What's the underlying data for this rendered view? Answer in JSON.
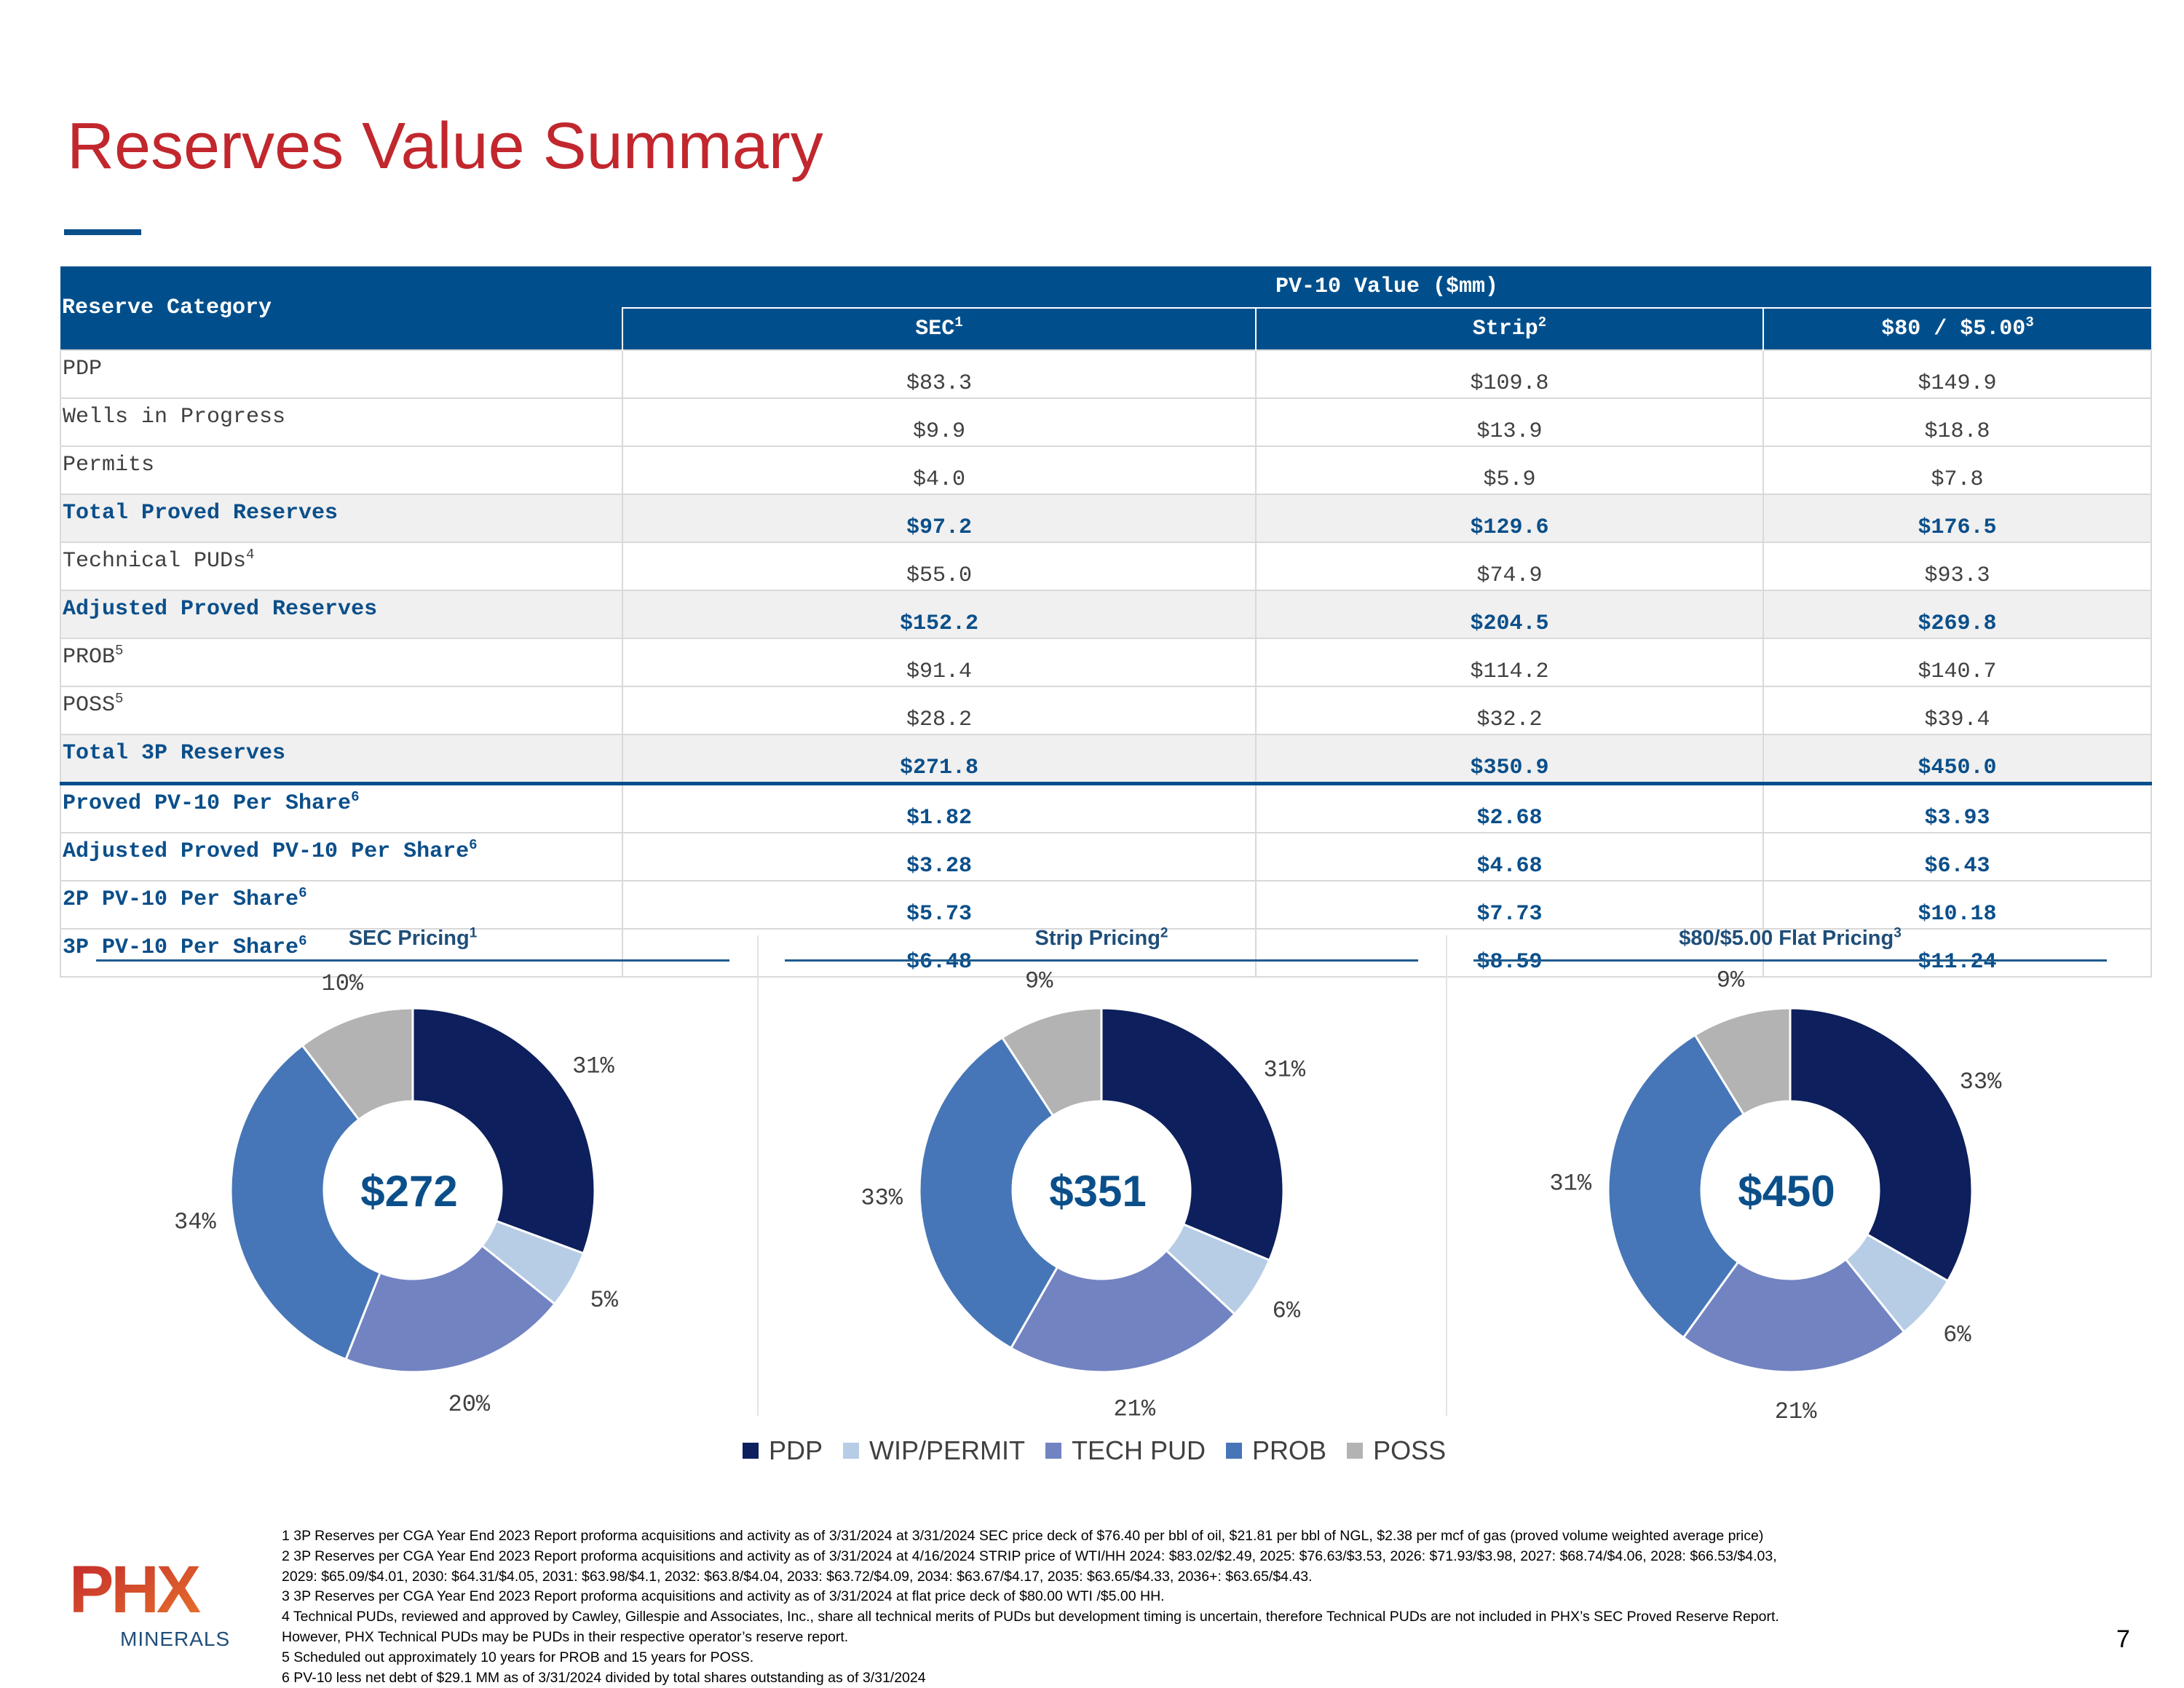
{
  "title": "Reserves Value Summary",
  "table": {
    "header_category": "Reserve Category",
    "header_group": "PV-10 Value ($mm)",
    "columns": [
      {
        "label": "SEC",
        "sup": "1"
      },
      {
        "label": "Strip",
        "sup": "2"
      },
      {
        "label": "$80 / $5.00",
        "sup": "3"
      }
    ],
    "rows": [
      {
        "label": "PDP",
        "sup": "",
        "values": [
          "$83.3",
          "$109.8",
          "$149.9"
        ]
      },
      {
        "label": "Wells in Progress",
        "sup": "",
        "values": [
          "$9.9",
          "$13.9",
          "$18.8"
        ]
      },
      {
        "label": "Permits",
        "sup": "",
        "values": [
          "$4.0",
          "$5.9",
          "$7.8"
        ]
      },
      {
        "label": "Total Proved Reserves",
        "sup": "",
        "values": [
          "$97.2",
          "$129.6",
          "$176.5"
        ]
      },
      {
        "label": "Technical PUDs",
        "sup": "4",
        "values": [
          "$55.0",
          "$74.9",
          "$93.3"
        ]
      },
      {
        "label": "Adjusted Proved Reserves",
        "sup": "",
        "values": [
          "$152.2",
          "$204.5",
          "$269.8"
        ]
      },
      {
        "label": "PROB",
        "sup": "5",
        "values": [
          "$91.4",
          "$114.2",
          "$140.7"
        ]
      },
      {
        "label": "POSS",
        "sup": "5",
        "values": [
          "$28.2",
          "$32.2",
          "$39.4"
        ]
      },
      {
        "label": "Total 3P Reserves",
        "sup": "",
        "values": [
          "$271.8",
          "$350.9",
          "$450.0"
        ]
      },
      {
        "label": "Proved PV-10 Per Share",
        "sup": "6",
        "values": [
          "$1.82",
          "$2.68",
          "$3.93"
        ]
      },
      {
        "label": "Adjusted Proved PV-10 Per Share",
        "sup": "6",
        "values": [
          "$3.28",
          "$4.68",
          "$6.43"
        ]
      },
      {
        "label": "2P PV-10 Per Share",
        "sup": "6",
        "values": [
          "$5.73",
          "$7.73",
          "$10.18"
        ]
      },
      {
        "label": "3P PV-10 Per Share",
        "sup": "6",
        "values": [
          "$6.48",
          "$8.59",
          "$11.24"
        ]
      }
    ]
  },
  "colors": {
    "PDP": "#0d1f5c",
    "WIP/PERMIT": "#b7cde6",
    "TECH PUD": "#7283c2",
    "PROB": "#4676b7",
    "POSS": "#b3b3b3"
  },
  "chart_data": [
    {
      "type": "pie",
      "title": "SEC Pricing",
      "title_sup": "1",
      "center_label": "$272",
      "categories": [
        "PDP",
        "WIP/PERMIT",
        "TECH PUD",
        "PROB",
        "POSS"
      ],
      "values": [
        83.3,
        13.9,
        55.0,
        91.4,
        28.2
      ],
      "labels": [
        "31%",
        "5%",
        "20%",
        "34%",
        "10%"
      ]
    },
    {
      "type": "pie",
      "title": "Strip Pricing",
      "title_sup": "2",
      "center_label": "$351",
      "categories": [
        "PDP",
        "WIP/PERMIT",
        "TECH PUD",
        "PROB",
        "POSS"
      ],
      "values": [
        109.8,
        19.8,
        74.9,
        114.2,
        32.2
      ],
      "labels": [
        "31%",
        "6%",
        "21%",
        "33%",
        "9%"
      ]
    },
    {
      "type": "pie",
      "title": "$80/$5.00 Flat Pricing",
      "title_sup": "3",
      "center_label": "$450",
      "categories": [
        "PDP",
        "WIP/PERMIT",
        "TECH PUD",
        "PROB",
        "POSS"
      ],
      "values": [
        149.9,
        26.6,
        93.3,
        140.7,
        39.4
      ],
      "labels": [
        "33%",
        "6%",
        "21%",
        "31%",
        "9%"
      ]
    }
  ],
  "legend": [
    "PDP",
    "WIP/PERMIT",
    "TECH PUD",
    "PROB",
    "POSS"
  ],
  "footnotes": [
    "1 3P Reserves per CGA  Year End 2023 Report proforma acquisitions and activity as of 3/31/2024 at 3/31/2024 SEC price deck of $76.40 per bbl of oil, $21.81 per bbl of NGL, $2.38 per mcf of gas (proved volume weighted average price)",
    "2 3P Reserves per CGA  Year End 2023 Report proforma acquisitions and activity as of 3/31/2024 at 4/16/2024 STRIP price of WTI/HH 2024: $83.02/$2.49, 2025: $76.63/$3.53, 2026: $71.93/$3.98, 2027: $68.74/$4.06, 2028: $66.53/$4.03,",
    "2029: $65.09/$4.01, 2030: $64.31/$4.05, 2031: $63.98/$4.1, 2032: $63.8/$4.04, 2033: $63.72/$4.09, 2034: $63.67/$4.17, 2035: $63.65/$4.33, 2036+: $63.65/$4.43.",
    "3 3P Reserves per CGA  Year End 2023 Report proforma acquisitions and activity as of 3/31/2024 at flat price deck of $80.00 WTI /$5.00 HH.",
    "4 Technical PUDs, reviewed and approved by Cawley, Gillespie and Associates, Inc., share all technical merits of PUDs but development timing is uncertain, therefore Technical PUDs are not included in PHX’s SEC Proved Reserve Report.",
    "However, PHX Technical PUDs may be PUDs in their respective operator’s reserve report.",
    "5 Scheduled out approximately 10 years for PROB and 15 years for POSS.",
    "6 PV-10 less net debt of $29.1 MM as of 3/31/2024 divided by total shares outstanding as of 3/31/2024"
  ],
  "logo": {
    "main": "PHX",
    "sub": "MINERALS"
  },
  "page_number": "7"
}
